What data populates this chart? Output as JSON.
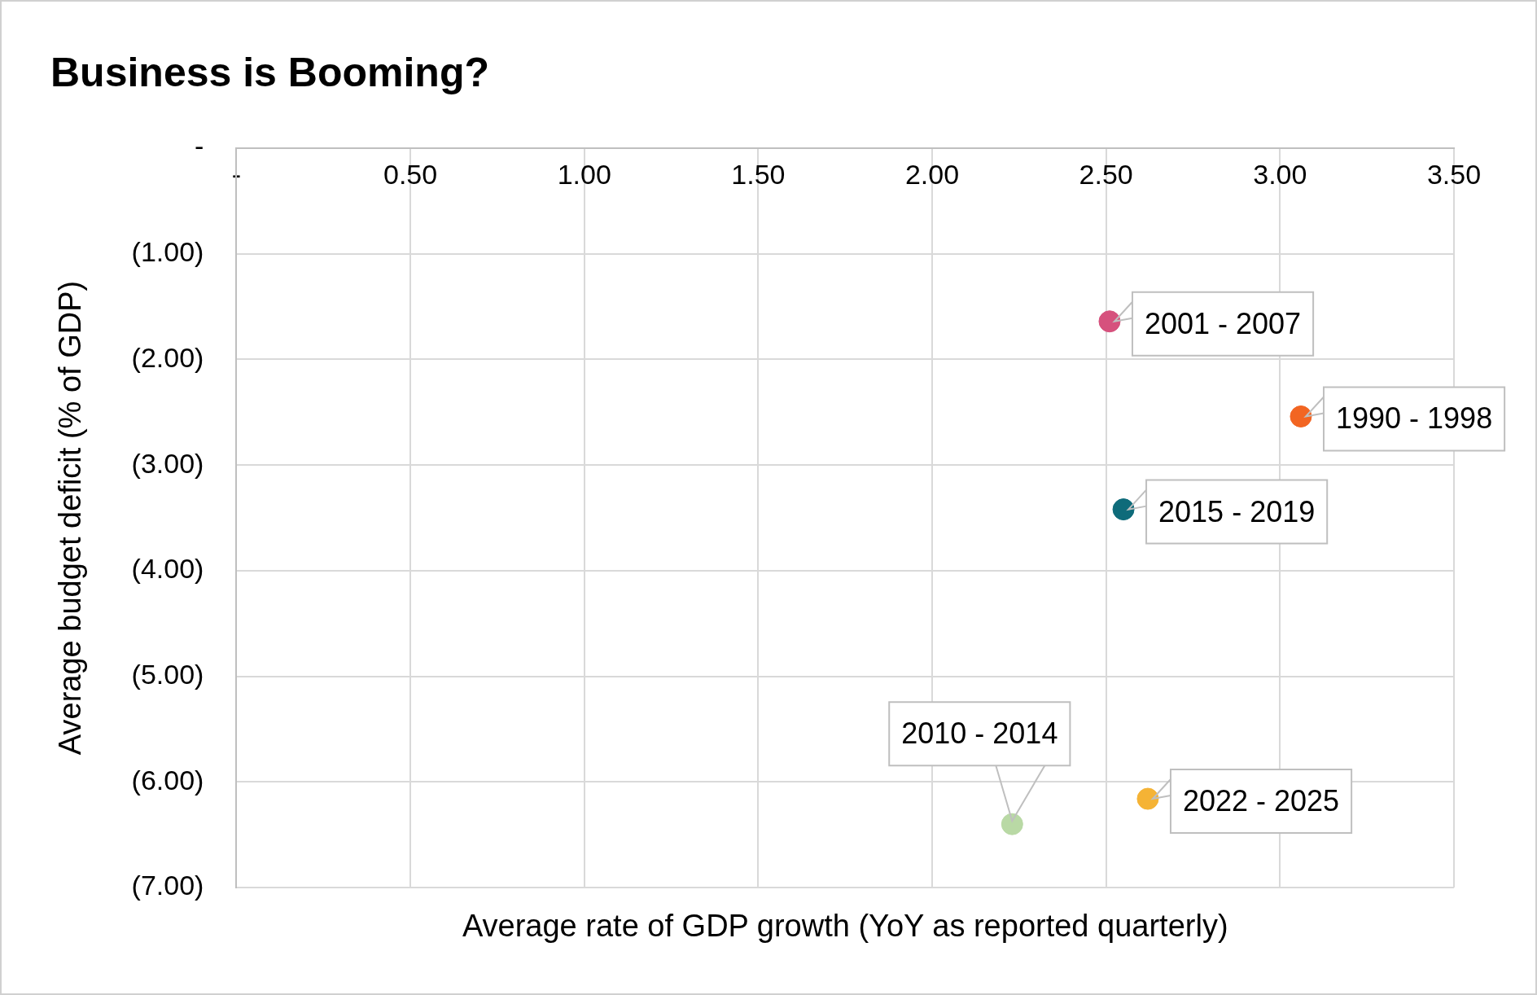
{
  "chart_data": {
    "type": "scatter",
    "title": "Business is Booming?",
    "xlabel": "Average rate of GDP growth (YoY as reported quarterly)",
    "ylabel": "Average budget deficit (% of GDP)",
    "series": [
      {
        "name": "2001 - 2007",
        "color": "#d6517d",
        "x": [
          2.51
        ],
        "values": [
          -1.64
        ]
      },
      {
        "name": "1990 - 1998",
        "color": "#f26522",
        "x": [
          3.06
        ],
        "values": [
          -2.54
        ]
      },
      {
        "name": "2015 - 2019",
        "color": "#0e6b7a",
        "x": [
          2.55
        ],
        "values": [
          -3.42
        ]
      },
      {
        "name": "2010 - 2014",
        "color": "#b9d9a5",
        "x": [
          2.23
        ],
        "values": [
          -6.4
        ]
      },
      {
        "name": "2022 - 2025",
        "color": "#f5b335",
        "x": [
          2.62
        ],
        "values": [
          -6.16
        ]
      }
    ],
    "xlim": [
      0,
      3.5
    ],
    "xticks": [
      {
        "value": 0,
        "label": "-"
      },
      {
        "value": 0.5,
        "label": "0.50"
      },
      {
        "value": 1,
        "label": "1.00"
      },
      {
        "value": 1.5,
        "label": "1.50"
      },
      {
        "value": 2,
        "label": "2.00"
      },
      {
        "value": 2.5,
        "label": "2.50"
      },
      {
        "value": 3,
        "label": "3.00"
      },
      {
        "value": 3.5,
        "label": "3.50"
      }
    ],
    "ylim": [
      -7,
      0
    ],
    "yticks": [
      {
        "value": 0,
        "label": "-"
      },
      {
        "value": -1,
        "label": "(1.00)"
      },
      {
        "value": -2,
        "label": "(2.00)"
      },
      {
        "value": -3,
        "label": "(3.00)"
      },
      {
        "value": -4,
        "label": "(4.00)"
      },
      {
        "value": -5,
        "label": "(5.00)"
      },
      {
        "value": -6,
        "label": "(6.00)"
      },
      {
        "value": -7,
        "label": "(7.00)"
      }
    ],
    "grid": true,
    "legend": false,
    "marker": "circle"
  }
}
